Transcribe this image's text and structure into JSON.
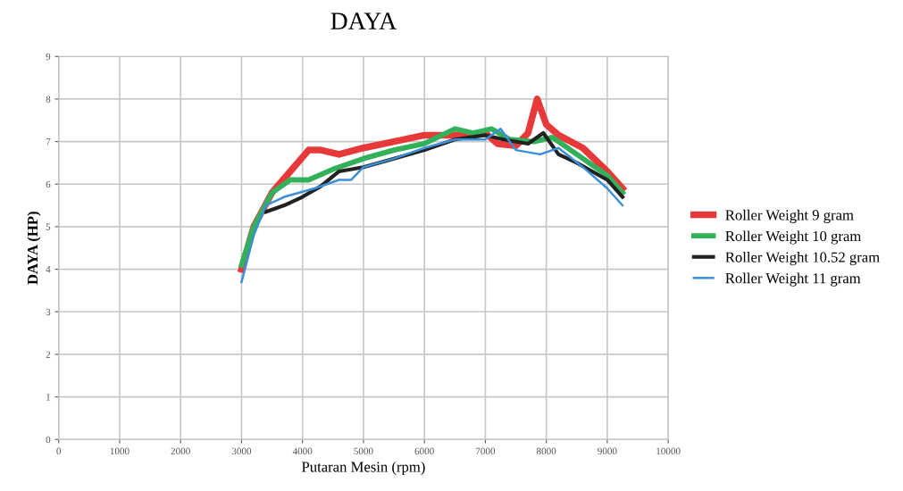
{
  "chart_data": {
    "type": "line",
    "title": "DAYA",
    "xlabel": "Putaran Mesin (rpm)",
    "ylabel": "DAYA (HP)",
    "xlim": [
      0,
      10000
    ],
    "xticks": [
      0,
      1000,
      2000,
      3000,
      4000,
      5000,
      6000,
      7000,
      8000,
      9000,
      10000
    ],
    "ylim": [
      0,
      9
    ],
    "yticks": [
      0,
      1,
      2,
      3,
      4,
      5,
      6,
      7,
      8,
      9
    ],
    "grid": true,
    "legend": "right",
    "marker": "none",
    "line_style": "solid",
    "series": [
      {
        "name": "Roller Weight 9 gram",
        "color": "#e8393a",
        "x": [
          3000,
          3200,
          3500,
          3800,
          4100,
          4300,
          4600,
          5000,
          5500,
          6000,
          6500,
          7000,
          7200,
          7500,
          7700,
          7850,
          8000,
          8200,
          8600,
          9000,
          9250
        ],
        "values": [
          4.0,
          5.0,
          5.8,
          6.3,
          6.8,
          6.8,
          6.7,
          6.85,
          7.0,
          7.15,
          7.15,
          7.2,
          6.95,
          6.9,
          7.2,
          8.0,
          7.4,
          7.15,
          6.85,
          6.3,
          5.9
        ]
      },
      {
        "name": "Roller Weight 10 gram",
        "color": "#33b05a",
        "x": [
          3000,
          3200,
          3500,
          3800,
          4100,
          4500,
          5000,
          5500,
          6000,
          6500,
          6800,
          7100,
          7400,
          7800,
          8100,
          8500,
          9000,
          9250
        ],
        "values": [
          4.1,
          5.0,
          5.8,
          6.1,
          6.1,
          6.35,
          6.6,
          6.8,
          6.95,
          7.3,
          7.2,
          7.3,
          7.05,
          7.0,
          7.1,
          6.7,
          6.2,
          5.8
        ]
      },
      {
        "name": "Roller Weight 10.52 gram",
        "color": "#222222",
        "x": [
          3400,
          3700,
          4000,
          4300,
          4600,
          5000,
          5500,
          6000,
          6500,
          7000,
          7300,
          7700,
          7950,
          8200,
          8500,
          9000,
          9250
        ],
        "values": [
          5.35,
          5.5,
          5.7,
          5.95,
          6.3,
          6.4,
          6.6,
          6.8,
          7.05,
          7.15,
          7.05,
          6.95,
          7.2,
          6.7,
          6.5,
          6.1,
          5.7
        ]
      },
      {
        "name": "Roller Weight 11 gram",
        "color": "#3a8fd6",
        "x": [
          3000,
          3200,
          3400,
          3700,
          4200,
          4600,
          4800,
          5000,
          5500,
          6000,
          6500,
          7000,
          7250,
          7500,
          7900,
          8200,
          8600,
          9000,
          9250
        ],
        "values": [
          3.7,
          4.8,
          5.5,
          5.7,
          5.9,
          6.1,
          6.1,
          6.4,
          6.6,
          6.85,
          7.05,
          7.05,
          7.3,
          6.8,
          6.7,
          6.85,
          6.4,
          5.9,
          5.5
        ]
      }
    ]
  }
}
